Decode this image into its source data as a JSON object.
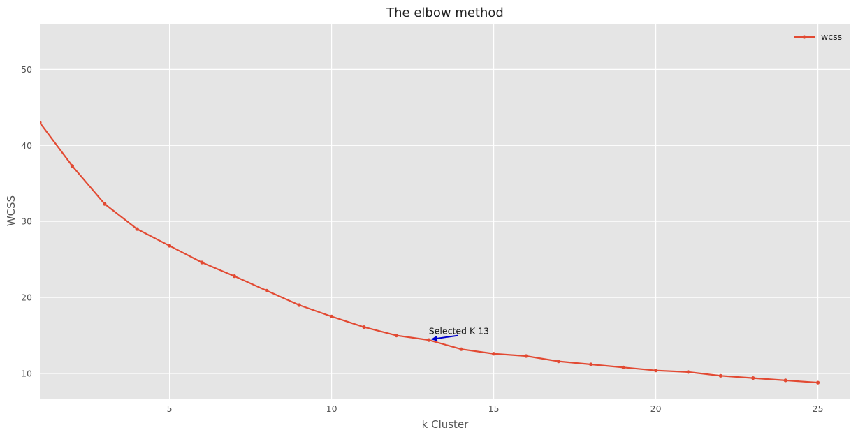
{
  "chart_data": {
    "type": "line",
    "title": "The elbow method",
    "xlabel": "k Cluster",
    "ylabel": "WCSS",
    "xlim": [
      1,
      26
    ],
    "ylim": [
      6.7,
      56
    ],
    "xticks": [
      5,
      10,
      15,
      20,
      25
    ],
    "yticks": [
      10,
      20,
      30,
      40,
      50
    ],
    "grid": true,
    "legend_position": "top-right",
    "series": [
      {
        "name": "wcss",
        "color": "#e24a33",
        "marker": "dot",
        "x": [
          1,
          2,
          3,
          4,
          5,
          6,
          7,
          8,
          9,
          10,
          11,
          12,
          13,
          14,
          15,
          16,
          17,
          18,
          19,
          20,
          21,
          22,
          23,
          24,
          25
        ],
        "y": [
          43.0,
          37.3,
          32.3,
          29.0,
          26.8,
          24.6,
          22.8,
          20.9,
          19.0,
          17.5,
          16.1,
          15.0,
          14.4,
          13.2,
          12.6,
          12.3,
          11.6,
          11.2,
          10.8,
          10.4,
          10.2,
          9.7,
          9.4,
          9.1,
          8.8
        ]
      }
    ],
    "annotation": {
      "text": "Selected K 13",
      "xy": [
        13.0,
        14.4
      ],
      "xytext": [
        13.9,
        15.0
      ],
      "arrow_color": "#0000cc"
    }
  }
}
